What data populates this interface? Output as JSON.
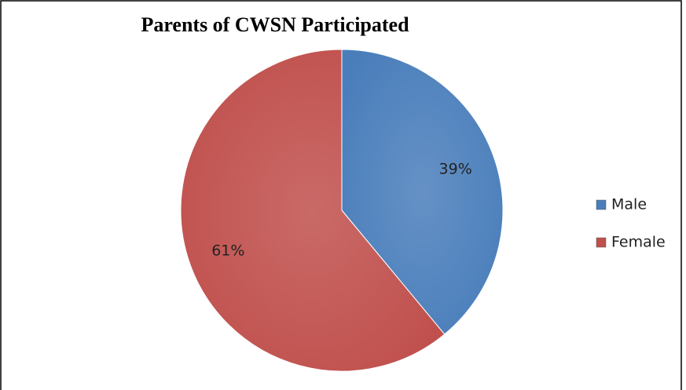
{
  "chart_data": {
    "type": "pie",
    "title": "Parents of CWSN Participated",
    "categories": [
      "Male",
      "Female"
    ],
    "values": [
      39,
      61
    ],
    "value_labels": [
      "39%",
      "61%"
    ],
    "colors": [
      "#4a7ebb",
      "#c0504d"
    ],
    "legend": "right"
  }
}
